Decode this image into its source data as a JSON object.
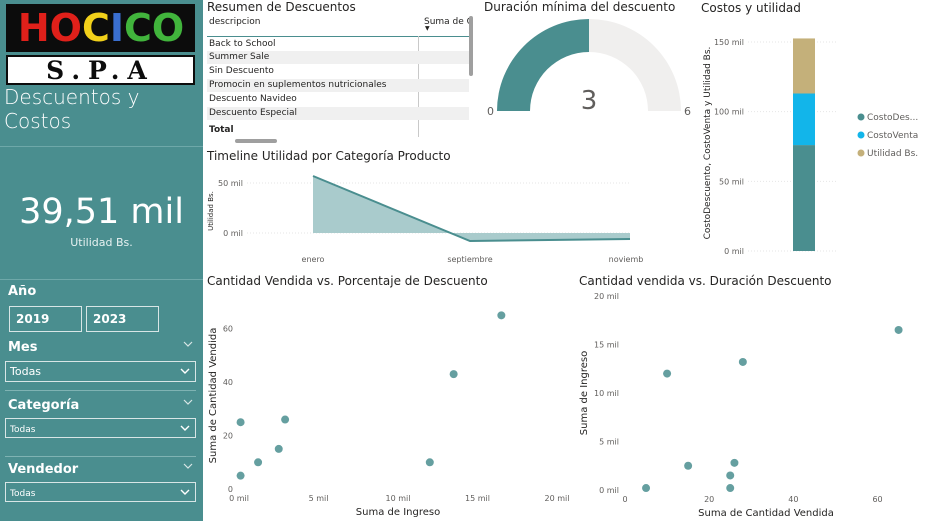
{
  "logo": {
    "top_text": "HOCICO",
    "bottom_text": "S.P.A"
  },
  "sidebar": {
    "title": "Descuentos y Costos",
    "kpi_value": "39,51 mil",
    "kpi_label": "Utilidad Bs.",
    "year_label": "Año",
    "years": [
      "2019",
      "2023"
    ],
    "month_label": "Mes",
    "month_value": "Todas",
    "category_label": "Categoría",
    "category_value": "Todas",
    "seller_label": "Vendedor",
    "seller_value": "Todas"
  },
  "table": {
    "title": "Resumen de Descuentos",
    "col_desc": "descripcion",
    "col_sum": "Suma de C",
    "rows": [
      "Back to School",
      "Summer Sale",
      "Sin Descuento",
      "Promocin en suplementos nutricionales",
      "Descuento Navideo",
      "Descuento Especial"
    ],
    "total_label": "Total"
  },
  "colors": {
    "teal": "#4a8e8f",
    "blue": "#12b5ea",
    "tan": "#c4b07a",
    "track": "#f0efee",
    "area": "#a9cbcc"
  },
  "chart_data": [
    {
      "type": "gauge",
      "title": "Duración mínima del descuento",
      "value": 3,
      "min": 0,
      "max": 6,
      "value_label": "3",
      "min_label": "0",
      "max_label": "6"
    },
    {
      "type": "bar",
      "stacked": true,
      "title": "Costos y utilidad",
      "ylabel": "CostoDescuento, CostoVenta y Utilidad Bs.",
      "ylim": [
        0,
        160000
      ],
      "yticks": [
        0,
        50000,
        100000,
        150000
      ],
      "ytick_labels": [
        "0 mil",
        "50 mil",
        "100 mil",
        "150 mil"
      ],
      "legend_position": "right",
      "categories": [
        ""
      ],
      "series": [
        {
          "name": "CostoDes...",
          "values": [
            76000
          ],
          "color": "#4a8e8f"
        },
        {
          "name": "CostoVenta",
          "values": [
            37000
          ],
          "color": "#12b5ea"
        },
        {
          "name": "Utilidad Bs.",
          "values": [
            39510
          ],
          "color": "#c4b07a"
        }
      ]
    },
    {
      "type": "area",
      "title": "Timeline Utilidad por Categoría Producto",
      "ylabel": "Utilidad Bs.",
      "xlabel": "",
      "x": [
        "enero",
        "septiembre",
        "noviembre"
      ],
      "ylim": [
        -10000,
        60000
      ],
      "yticks": [
        0,
        50000
      ],
      "ytick_labels": [
        "0 mil",
        "50 mil"
      ],
      "series": [
        {
          "values": [
            57000,
            -8000,
            -6000
          ]
        }
      ]
    },
    {
      "type": "scatter",
      "title": "Cantidad Vendida vs. Porcentaje de Descuento",
      "xlabel": "Suma de Ingreso",
      "ylabel": "Suma de Cantidad Vendida",
      "xlim": [
        0,
        20000
      ],
      "ylim": [
        0,
        70
      ],
      "xticks": [
        0,
        5000,
        10000,
        15000,
        20000
      ],
      "xtick_labels": [
        "0 mil",
        "5 mil",
        "10 mil",
        "15 mil",
        "20 mil"
      ],
      "yticks": [
        0,
        20,
        40,
        60
      ],
      "ytick_labels": [
        "0",
        "20",
        "40",
        "60"
      ],
      "points": [
        [
          100,
          5
        ],
        [
          100,
          25
        ],
        [
          1200,
          10
        ],
        [
          2500,
          15
        ],
        [
          2900,
          26
        ],
        [
          12000,
          10
        ],
        [
          13500,
          43
        ],
        [
          16500,
          65
        ]
      ]
    },
    {
      "type": "scatter",
      "title": "Cantidad vendida vs. Duración Descuento",
      "xlabel": "Suma de Cantidad Vendida",
      "ylabel": "Suma de Ingreso",
      "xlim": [
        0,
        67
      ],
      "ylim": [
        0,
        20000
      ],
      "xticks": [
        0,
        20,
        40,
        60
      ],
      "xtick_labels": [
        "0",
        "20",
        "40",
        "60"
      ],
      "yticks": [
        0,
        5000,
        10000,
        15000,
        20000
      ],
      "ytick_labels": [
        "0 mil",
        "5 mil",
        "10 mil",
        "15 mil",
        "20 mil"
      ],
      "points": [
        [
          5,
          200
        ],
        [
          10,
          12000
        ],
        [
          15,
          2500
        ],
        [
          25,
          1500
        ],
        [
          25,
          200
        ],
        [
          26,
          2800
        ],
        [
          28,
          13200
        ],
        [
          65,
          16500
        ]
      ]
    }
  ]
}
